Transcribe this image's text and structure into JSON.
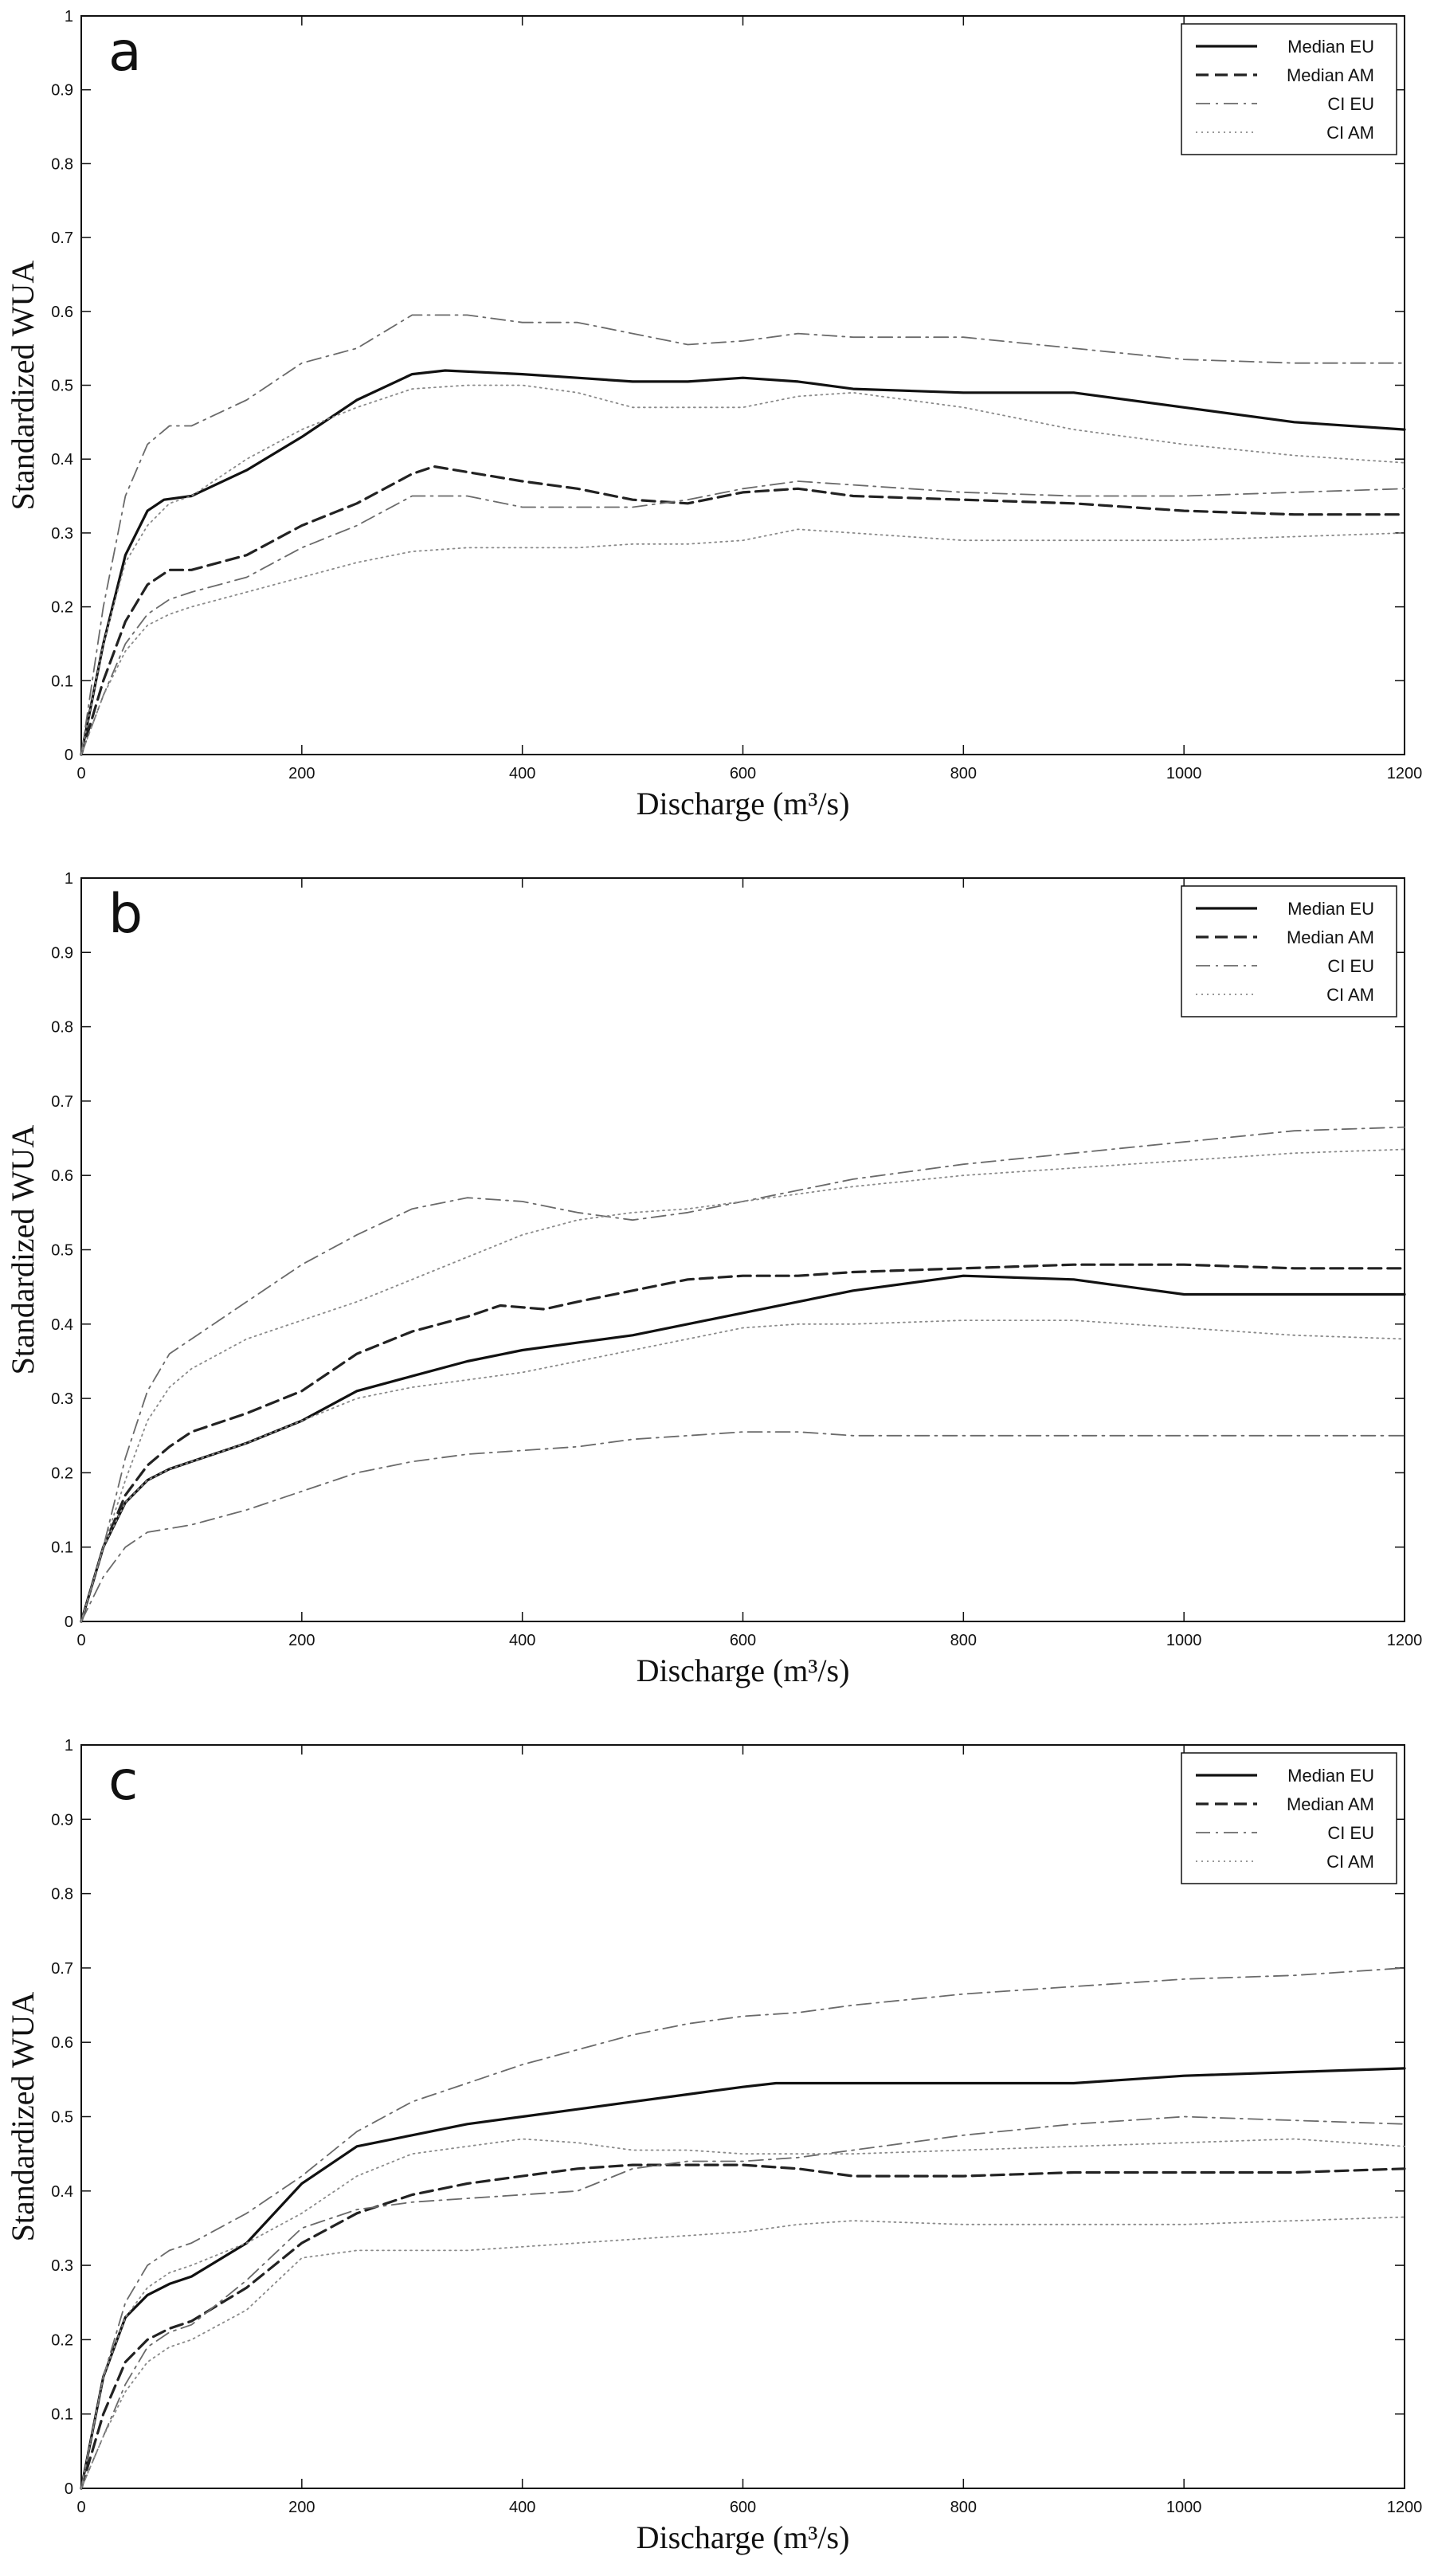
{
  "figure": {
    "panels": [
      "a",
      "b",
      "c"
    ]
  },
  "colors": {
    "median_eu": "#111111",
    "median_am": "#222222",
    "ci_eu": "#6a6a6a",
    "ci_am": "#8a8a8a",
    "axes": "#111111"
  },
  "chart_data": [
    {
      "panel": "a",
      "type": "line",
      "xlabel": "Discharge (m³/s)",
      "ylabel": "Standardized WUA",
      "xlim": [
        0,
        1200
      ],
      "ylim": [
        0,
        1
      ],
      "xticks": [
        0,
        200,
        400,
        600,
        800,
        1000,
        1200
      ],
      "yticks": [
        0,
        0.1,
        0.2,
        0.3,
        0.4,
        0.5,
        0.6,
        0.7,
        0.8,
        0.9,
        1
      ],
      "ytick_labels": [
        "0",
        "0.1",
        "0.2",
        "0.3",
        "0.4",
        "0.5",
        "0.6",
        "0.7",
        "0.8",
        "0.9",
        "1"
      ],
      "legend": "top-right",
      "series": [
        {
          "name": "Median EU",
          "style": "solid",
          "x": [
            0,
            20,
            40,
            60,
            75,
            100,
            150,
            200,
            250,
            300,
            330,
            400,
            450,
            500,
            550,
            600,
            650,
            700,
            800,
            900,
            1000,
            1100,
            1200
          ],
          "y": [
            0,
            0.15,
            0.27,
            0.33,
            0.345,
            0.35,
            0.385,
            0.43,
            0.48,
            0.515,
            0.52,
            0.515,
            0.51,
            0.505,
            0.505,
            0.51,
            0.505,
            0.495,
            0.49,
            0.49,
            0.47,
            0.45,
            0.44
          ]
        },
        {
          "name": "Median AM",
          "style": "dashed",
          "x": [
            0,
            20,
            40,
            60,
            80,
            100,
            150,
            200,
            250,
            300,
            320,
            400,
            450,
            500,
            550,
            600,
            650,
            700,
            800,
            900,
            1000,
            1100,
            1200
          ],
          "y": [
            0,
            0.1,
            0.18,
            0.23,
            0.25,
            0.25,
            0.27,
            0.31,
            0.34,
            0.38,
            0.39,
            0.37,
            0.36,
            0.345,
            0.34,
            0.355,
            0.36,
            0.35,
            0.345,
            0.34,
            0.33,
            0.325,
            0.325
          ]
        },
        {
          "name": "CI EU",
          "style": "dashdot",
          "group": "upper",
          "x": [
            0,
            20,
            40,
            60,
            80,
            100,
            150,
            200,
            250,
            300,
            350,
            400,
            450,
            500,
            550,
            600,
            650,
            700,
            800,
            900,
            1000,
            1100,
            1200
          ],
          "y": [
            0,
            0.2,
            0.35,
            0.42,
            0.445,
            0.445,
            0.48,
            0.53,
            0.55,
            0.595,
            0.595,
            0.585,
            0.585,
            0.57,
            0.555,
            0.56,
            0.57,
            0.565,
            0.565,
            0.55,
            0.535,
            0.53,
            0.53
          ]
        },
        {
          "name": "",
          "style": "dashdot",
          "group": "lower",
          "x": [
            0,
            20,
            40,
            60,
            80,
            100,
            150,
            200,
            250,
            300,
            350,
            400,
            450,
            500,
            550,
            600,
            650,
            700,
            800,
            900,
            1000,
            1100,
            1200
          ],
          "y": [
            0,
            0.08,
            0.15,
            0.19,
            0.21,
            0.22,
            0.24,
            0.28,
            0.31,
            0.35,
            0.35,
            0.335,
            0.335,
            0.335,
            0.345,
            0.36,
            0.37,
            0.365,
            0.355,
            0.35,
            0.35,
            0.355,
            0.36
          ]
        },
        {
          "name": "CI AM",
          "style": "dotted",
          "group": "upper",
          "x": [
            0,
            20,
            40,
            60,
            80,
            100,
            150,
            200,
            250,
            300,
            350,
            400,
            450,
            500,
            550,
            600,
            650,
            700,
            800,
            900,
            1000,
            1100,
            1200
          ],
          "y": [
            0,
            0.15,
            0.26,
            0.31,
            0.34,
            0.35,
            0.4,
            0.44,
            0.47,
            0.495,
            0.5,
            0.5,
            0.49,
            0.47,
            0.47,
            0.47,
            0.485,
            0.49,
            0.47,
            0.44,
            0.42,
            0.405,
            0.395
          ]
        },
        {
          "name": "",
          "style": "dotted",
          "group": "lower",
          "x": [
            0,
            20,
            40,
            60,
            80,
            100,
            150,
            200,
            250,
            300,
            350,
            400,
            450,
            500,
            550,
            600,
            650,
            700,
            800,
            900,
            1000,
            1100,
            1200
          ],
          "y": [
            0,
            0.08,
            0.14,
            0.175,
            0.19,
            0.2,
            0.22,
            0.24,
            0.26,
            0.275,
            0.28,
            0.28,
            0.28,
            0.285,
            0.285,
            0.29,
            0.305,
            0.3,
            0.29,
            0.29,
            0.29,
            0.295,
            0.3
          ]
        }
      ]
    },
    {
      "panel": "b",
      "type": "line",
      "xlabel": "Discharge (m³/s)",
      "ylabel": "Standardized WUA",
      "xlim": [
        0,
        1200
      ],
      "ylim": [
        0,
        1
      ],
      "xticks": [
        0,
        200,
        400,
        600,
        800,
        1000,
        1200
      ],
      "yticks": [
        0,
        0.1,
        0.2,
        0.3,
        0.4,
        0.5,
        0.6,
        0.7,
        0.8,
        0.9,
        1
      ],
      "ytick_labels": [
        "0",
        "0.1",
        "0.2",
        "0.3",
        "0.4",
        "0.5",
        "0.6",
        "0.7",
        "0.8",
        "0.9",
        "1"
      ],
      "legend": "top-right",
      "series": [
        {
          "name": "Median EU",
          "style": "solid",
          "x": [
            0,
            20,
            40,
            60,
            80,
            100,
            150,
            200,
            250,
            300,
            350,
            400,
            450,
            500,
            550,
            600,
            650,
            700,
            800,
            900,
            1000,
            1100,
            1200
          ],
          "y": [
            0,
            0.1,
            0.16,
            0.19,
            0.205,
            0.215,
            0.24,
            0.27,
            0.31,
            0.33,
            0.35,
            0.365,
            0.375,
            0.385,
            0.4,
            0.415,
            0.43,
            0.445,
            0.465,
            0.46,
            0.44,
            0.44,
            0.44
          ]
        },
        {
          "name": "Median AM",
          "style": "dashed",
          "x": [
            0,
            20,
            40,
            60,
            80,
            100,
            150,
            200,
            250,
            300,
            350,
            380,
            420,
            450,
            500,
            550,
            600,
            650,
            700,
            800,
            900,
            1000,
            1100,
            1200
          ],
          "y": [
            0,
            0.1,
            0.17,
            0.21,
            0.235,
            0.255,
            0.28,
            0.31,
            0.36,
            0.39,
            0.41,
            0.425,
            0.42,
            0.43,
            0.445,
            0.46,
            0.465,
            0.465,
            0.47,
            0.475,
            0.48,
            0.48,
            0.475,
            0.475
          ]
        },
        {
          "name": "CI EU",
          "style": "dashdot",
          "group": "upper",
          "x": [
            0,
            20,
            40,
            60,
            80,
            100,
            150,
            200,
            250,
            300,
            350,
            400,
            450,
            500,
            550,
            600,
            650,
            700,
            800,
            900,
            1000,
            1100,
            1200
          ],
          "y": [
            0,
            0.1,
            0.22,
            0.31,
            0.36,
            0.38,
            0.43,
            0.48,
            0.52,
            0.555,
            0.57,
            0.565,
            0.55,
            0.54,
            0.55,
            0.565,
            0.58,
            0.595,
            0.615,
            0.63,
            0.645,
            0.66,
            0.665
          ]
        },
        {
          "name": "",
          "style": "dashdot",
          "group": "lower",
          "x": [
            0,
            20,
            40,
            60,
            80,
            100,
            150,
            200,
            250,
            300,
            350,
            400,
            450,
            500,
            550,
            600,
            650,
            700,
            800,
            900,
            1000,
            1100,
            1200
          ],
          "y": [
            0,
            0.06,
            0.1,
            0.12,
            0.125,
            0.13,
            0.15,
            0.175,
            0.2,
            0.215,
            0.225,
            0.23,
            0.235,
            0.245,
            0.25,
            0.255,
            0.255,
            0.25,
            0.25,
            0.25,
            0.25,
            0.25,
            0.25
          ]
        },
        {
          "name": "CI AM",
          "style": "dotted",
          "group": "upper",
          "x": [
            0,
            20,
            40,
            60,
            80,
            100,
            150,
            200,
            250,
            300,
            350,
            400,
            450,
            500,
            550,
            600,
            650,
            700,
            800,
            900,
            1000,
            1100,
            1200
          ],
          "y": [
            0,
            0.1,
            0.19,
            0.27,
            0.315,
            0.34,
            0.38,
            0.405,
            0.43,
            0.46,
            0.49,
            0.52,
            0.54,
            0.55,
            0.555,
            0.565,
            0.575,
            0.585,
            0.6,
            0.61,
            0.62,
            0.63,
            0.635
          ]
        },
        {
          "name": "",
          "style": "dotted",
          "group": "lower",
          "x": [
            0,
            20,
            40,
            60,
            80,
            100,
            150,
            200,
            250,
            300,
            350,
            400,
            450,
            500,
            550,
            600,
            650,
            700,
            800,
            900,
            1000,
            1100,
            1200
          ],
          "y": [
            0,
            0.1,
            0.16,
            0.19,
            0.205,
            0.215,
            0.24,
            0.27,
            0.3,
            0.315,
            0.325,
            0.335,
            0.35,
            0.365,
            0.38,
            0.395,
            0.4,
            0.4,
            0.405,
            0.405,
            0.395,
            0.385,
            0.38
          ]
        }
      ]
    },
    {
      "panel": "c",
      "type": "line",
      "xlabel": "Discharge (m³/s)",
      "ylabel": "Standardized WUA",
      "xlim": [
        0,
        1200
      ],
      "ylim": [
        0,
        1
      ],
      "xticks": [
        0,
        200,
        400,
        600,
        800,
        1000,
        1200
      ],
      "yticks": [
        0,
        0.1,
        0.2,
        0.3,
        0.4,
        0.5,
        0.6,
        0.7,
        0.8,
        0.9,
        1
      ],
      "ytick_labels": [
        "0",
        "0.1",
        "0.2",
        "0.3",
        "0.4",
        "0.5",
        "0.6",
        "0.7",
        "0.8",
        "0.9",
        "1"
      ],
      "legend": "top-right",
      "series": [
        {
          "name": "Median EU",
          "style": "solid",
          "x": [
            0,
            20,
            40,
            60,
            80,
            100,
            150,
            200,
            250,
            300,
            350,
            400,
            450,
            500,
            550,
            600,
            630,
            700,
            800,
            900,
            1000,
            1100,
            1200
          ],
          "y": [
            0,
            0.15,
            0.23,
            0.26,
            0.275,
            0.285,
            0.33,
            0.41,
            0.46,
            0.475,
            0.49,
            0.5,
            0.51,
            0.52,
            0.53,
            0.54,
            0.545,
            0.545,
            0.545,
            0.545,
            0.555,
            0.56,
            0.565
          ]
        },
        {
          "name": "Median AM",
          "style": "dashed",
          "x": [
            0,
            20,
            40,
            60,
            80,
            100,
            150,
            200,
            250,
            300,
            350,
            400,
            450,
            500,
            550,
            600,
            650,
            700,
            800,
            900,
            1000,
            1100,
            1200
          ],
          "y": [
            0,
            0.1,
            0.17,
            0.2,
            0.215,
            0.225,
            0.27,
            0.33,
            0.37,
            0.395,
            0.41,
            0.42,
            0.43,
            0.435,
            0.435,
            0.435,
            0.43,
            0.42,
            0.42,
            0.425,
            0.425,
            0.425,
            0.43
          ]
        },
        {
          "name": "CI EU",
          "style": "dashdot",
          "group": "upper",
          "x": [
            0,
            20,
            40,
            60,
            80,
            100,
            150,
            200,
            250,
            300,
            350,
            400,
            450,
            500,
            550,
            600,
            650,
            700,
            800,
            900,
            1000,
            1100,
            1200
          ],
          "y": [
            0,
            0.15,
            0.25,
            0.3,
            0.32,
            0.33,
            0.37,
            0.42,
            0.48,
            0.52,
            0.545,
            0.57,
            0.59,
            0.61,
            0.625,
            0.635,
            0.64,
            0.65,
            0.665,
            0.675,
            0.685,
            0.69,
            0.7
          ]
        },
        {
          "name": "",
          "style": "dashdot",
          "group": "lower",
          "x": [
            0,
            20,
            40,
            60,
            80,
            100,
            150,
            200,
            250,
            300,
            350,
            400,
            450,
            500,
            550,
            600,
            650,
            700,
            800,
            900,
            1000,
            1100,
            1200
          ],
          "y": [
            0,
            0.07,
            0.14,
            0.19,
            0.21,
            0.22,
            0.28,
            0.35,
            0.375,
            0.385,
            0.39,
            0.395,
            0.4,
            0.43,
            0.44,
            0.44,
            0.445,
            0.455,
            0.475,
            0.49,
            0.5,
            0.495,
            0.49
          ]
        },
        {
          "name": "CI AM",
          "style": "dotted",
          "group": "upper",
          "x": [
            0,
            20,
            40,
            60,
            80,
            100,
            150,
            200,
            250,
            300,
            350,
            400,
            450,
            500,
            550,
            600,
            650,
            700,
            800,
            900,
            1000,
            1100,
            1200
          ],
          "y": [
            0,
            0.15,
            0.23,
            0.27,
            0.29,
            0.3,
            0.33,
            0.37,
            0.42,
            0.45,
            0.46,
            0.47,
            0.465,
            0.455,
            0.455,
            0.45,
            0.45,
            0.45,
            0.455,
            0.46,
            0.465,
            0.47,
            0.46
          ]
        },
        {
          "name": "",
          "style": "dotted",
          "group": "lower",
          "x": [
            0,
            20,
            40,
            60,
            80,
            100,
            150,
            200,
            250,
            300,
            350,
            400,
            450,
            500,
            550,
            600,
            650,
            700,
            800,
            900,
            1000,
            1100,
            1200
          ],
          "y": [
            0,
            0.07,
            0.13,
            0.17,
            0.19,
            0.2,
            0.24,
            0.31,
            0.32,
            0.32,
            0.32,
            0.325,
            0.33,
            0.335,
            0.34,
            0.345,
            0.355,
            0.36,
            0.355,
            0.355,
            0.355,
            0.36,
            0.365
          ]
        }
      ]
    }
  ]
}
